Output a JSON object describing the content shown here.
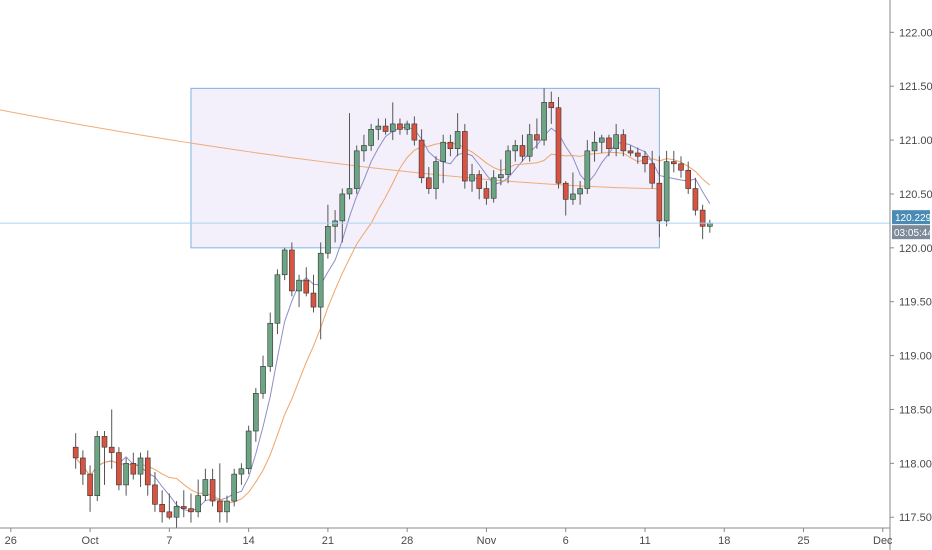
{
  "chart_data": {
    "type": "candlestick",
    "colors": {
      "up": "#6ba583",
      "down": "#d75442",
      "ma_fast": "#8e8ec8",
      "ma_slow": "#f0a46a",
      "box_fill": "#f3f0fb",
      "box_stroke": "#7fb3e0",
      "last_line": "#a9d3f0",
      "last_tag": "#4a8ab5",
      "timer_tag": "#7c8a99"
    },
    "y_ticks": [
      "122.000",
      "121.500",
      "121.000",
      "120.500",
      "120.000",
      "119.500",
      "119.000",
      "118.500",
      "118.000",
      "117.500"
    ],
    "y_tick_values": [
      122.0,
      121.5,
      121.0,
      120.5,
      120.0,
      119.5,
      119.0,
      118.5,
      118.0,
      117.5
    ],
    "ylim": [
      117.4,
      122.3
    ],
    "x_ticks": [
      "26",
      "Oct",
      "7",
      "14",
      "21",
      "28",
      "Nov",
      "6",
      "11",
      "18",
      "25",
      "Dec"
    ],
    "x_tick_index": [
      -9,
      2,
      13,
      24,
      35,
      46,
      57,
      68,
      79,
      90,
      101,
      112
    ],
    "x_range": [
      -10.5,
      113
    ],
    "last_price": "120.229",
    "last_price_value": 120.229,
    "timer": "03:05:44",
    "range_box": {
      "x_start": 16,
      "x_end": 81,
      "top": 121.48,
      "bottom": 120.0
    },
    "candles": [
      [
        118.15,
        118.28,
        117.95,
        118.05
      ],
      [
        118.05,
        118.12,
        117.8,
        117.9
      ],
      [
        117.9,
        117.98,
        117.55,
        117.7
      ],
      [
        117.7,
        118.3,
        117.65,
        118.25
      ],
      [
        118.25,
        118.3,
        117.8,
        118.15
      ],
      [
        118.15,
        118.5,
        117.95,
        118.1
      ],
      [
        118.1,
        118.15,
        117.75,
        117.8
      ],
      [
        117.8,
        118.05,
        117.7,
        118.0
      ],
      [
        118.0,
        118.1,
        117.85,
        117.9
      ],
      [
        117.9,
        118.1,
        117.78,
        118.05
      ],
      [
        118.05,
        118.12,
        117.7,
        117.8
      ],
      [
        117.8,
        117.92,
        117.55,
        117.62
      ],
      [
        117.62,
        117.75,
        117.45,
        117.55
      ],
      [
        117.55,
        117.72,
        117.48,
        117.5
      ],
      [
        117.5,
        117.65,
        117.4,
        117.6
      ],
      [
        117.6,
        117.75,
        117.5,
        117.58
      ],
      [
        117.58,
        117.72,
        117.45,
        117.55
      ],
      [
        117.55,
        117.85,
        117.5,
        117.7
      ],
      [
        117.7,
        117.95,
        117.65,
        117.85
      ],
      [
        117.85,
        117.95,
        117.6,
        117.65
      ],
      [
        117.65,
        118.0,
        117.45,
        117.55
      ],
      [
        117.55,
        117.7,
        117.45,
        117.65
      ],
      [
        117.65,
        117.95,
        117.6,
        117.9
      ],
      [
        117.9,
        118.0,
        117.8,
        117.95
      ],
      [
        117.95,
        118.35,
        117.9,
        118.3
      ],
      [
        118.3,
        118.7,
        118.2,
        118.65
      ],
      [
        118.65,
        119.0,
        118.6,
        118.9
      ],
      [
        118.9,
        119.4,
        118.85,
        119.3
      ],
      [
        119.3,
        119.8,
        119.2,
        119.75
      ],
      [
        119.75,
        120.0,
        119.7,
        119.98
      ],
      [
        119.98,
        120.05,
        119.55,
        119.6
      ],
      [
        119.6,
        119.75,
        119.45,
        119.7
      ],
      [
        119.7,
        119.82,
        119.55,
        119.58
      ],
      [
        119.58,
        119.75,
        119.4,
        119.45
      ],
      [
        119.45,
        120.05,
        119.15,
        119.95
      ],
      [
        119.95,
        120.4,
        119.9,
        120.2
      ],
      [
        120.2,
        120.35,
        120.05,
        120.25
      ],
      [
        120.25,
        120.55,
        120.05,
        120.5
      ],
      [
        120.5,
        121.25,
        120.45,
        120.55
      ],
      [
        120.55,
        120.95,
        120.5,
        120.9
      ],
      [
        120.9,
        121.05,
        120.8,
        120.95
      ],
      [
        120.95,
        121.15,
        120.9,
        121.1
      ],
      [
        121.1,
        121.2,
        121.0,
        121.13
      ],
      [
        121.13,
        121.2,
        121.05,
        121.08
      ],
      [
        121.08,
        121.35,
        121.0,
        121.15
      ],
      [
        121.15,
        121.2,
        121.05,
        121.1
      ],
      [
        121.1,
        121.18,
        121.05,
        121.15
      ],
      [
        121.15,
        121.22,
        120.95,
        121.0
      ],
      [
        121.0,
        121.1,
        120.6,
        120.65
      ],
      [
        120.65,
        120.75,
        120.5,
        120.55
      ],
      [
        120.55,
        120.85,
        120.45,
        120.8
      ],
      [
        120.8,
        121.05,
        120.6,
        120.98
      ],
      [
        120.98,
        121.05,
        120.85,
        120.92
      ],
      [
        120.92,
        121.25,
        120.85,
        121.08
      ],
      [
        121.08,
        121.15,
        120.55,
        120.62
      ],
      [
        120.62,
        120.78,
        120.52,
        120.68
      ],
      [
        120.68,
        120.72,
        120.45,
        120.55
      ],
      [
        120.55,
        120.62,
        120.4,
        120.46
      ],
      [
        120.46,
        120.72,
        120.42,
        120.65
      ],
      [
        120.65,
        120.82,
        120.58,
        120.68
      ],
      [
        120.68,
        120.95,
        120.6,
        120.9
      ],
      [
        120.9,
        121.0,
        120.8,
        120.95
      ],
      [
        120.95,
        121.05,
        120.8,
        120.85
      ],
      [
        120.85,
        121.15,
        120.8,
        121.05
      ],
      [
        121.05,
        121.2,
        120.92,
        121.0
      ],
      [
        121.0,
        121.48,
        120.95,
        121.35
      ],
      [
        121.35,
        121.45,
        121.15,
        121.3
      ],
      [
        121.3,
        121.4,
        120.55,
        120.6
      ],
      [
        120.6,
        120.62,
        120.3,
        120.45
      ],
      [
        120.45,
        120.7,
        120.4,
        120.5
      ],
      [
        120.5,
        120.62,
        120.4,
        120.55
      ],
      [
        120.55,
        121.0,
        120.5,
        120.9
      ],
      [
        120.9,
        121.08,
        120.8,
        120.98
      ],
      [
        120.98,
        121.05,
        120.88,
        121.02
      ],
      [
        121.02,
        121.05,
        120.85,
        120.92
      ],
      [
        120.92,
        121.15,
        120.85,
        121.05
      ],
      [
        121.05,
        121.1,
        120.85,
        120.9
      ],
      [
        120.9,
        120.95,
        120.85,
        120.88
      ],
      [
        120.88,
        120.93,
        120.78,
        120.85
      ],
      [
        120.85,
        120.9,
        120.7,
        120.78
      ],
      [
        120.78,
        120.9,
        120.55,
        120.6
      ],
      [
        120.6,
        120.85,
        120.1,
        120.25
      ],
      [
        120.25,
        120.9,
        120.2,
        120.8
      ],
      [
        120.8,
        120.9,
        120.7,
        120.78
      ],
      [
        120.78,
        120.85,
        120.65,
        120.72
      ],
      [
        120.72,
        120.8,
        120.5,
        120.55
      ],
      [
        120.55,
        120.65,
        120.3,
        120.35
      ],
      [
        120.35,
        120.4,
        120.08,
        120.2
      ],
      [
        120.2,
        120.26,
        120.14,
        120.229
      ]
    ]
  }
}
